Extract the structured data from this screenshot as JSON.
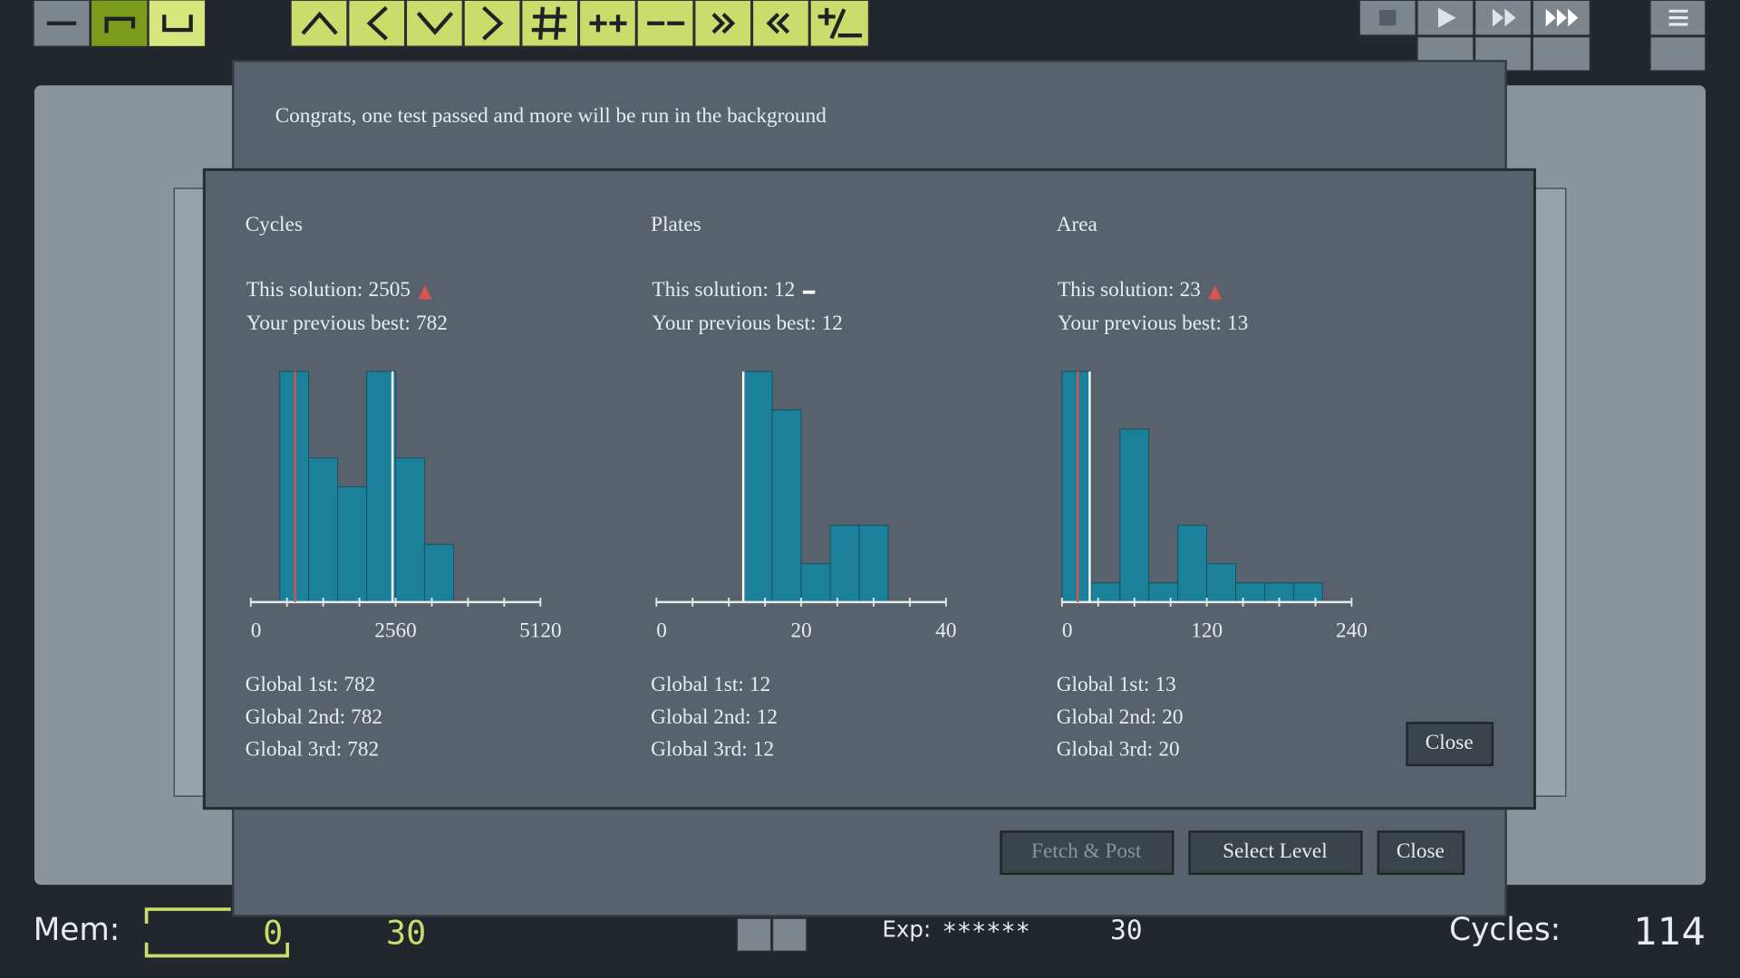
{
  "message": "Congrats, one test passed and more will be run in the background",
  "buttons": [
    "Fetch & Post",
    "Select Level",
    "Close"
  ],
  "results_close": "Close",
  "chart_data": [
    {
      "type": "histogram",
      "title": "Cycles",
      "this_solution_label": "This solution:",
      "this_solution": 2505,
      "trend": "up",
      "previous_best_label": "Your previous best:",
      "previous_best": 782,
      "bins": [
        512,
        1024,
        1536,
        2048,
        2560,
        3072,
        3584
      ],
      "counts": [
        8,
        5,
        4,
        8,
        5,
        2
      ],
      "xlim": [
        0,
        5120
      ],
      "ylim": [
        0,
        8
      ],
      "xticks": [
        0,
        2560,
        5120
      ],
      "minor_xticks": [
        0,
        640,
        1280,
        1920,
        2560,
        3200,
        3840,
        4480,
        5120
      ],
      "color": "#1b8099",
      "previous_best_color": "#d9534f",
      "this_solution_color": "#ffffff",
      "globals": [
        {
          "label": "Global 1st:",
          "value": 782
        },
        {
          "label": "Global 2nd:",
          "value": 782
        },
        {
          "label": "Global 3rd:",
          "value": 782
        }
      ]
    },
    {
      "type": "histogram",
      "title": "Plates",
      "this_solution_label": "This solution:",
      "this_solution": 12,
      "trend": "same",
      "previous_best_label": "Your previous best:",
      "previous_best": 12,
      "bins": [
        12,
        16,
        20,
        24,
        28,
        32
      ],
      "counts": [
        6,
        5,
        1,
        2,
        2
      ],
      "xlim": [
        0,
        40
      ],
      "ylim": [
        0,
        6
      ],
      "xticks": [
        0,
        20,
        40
      ],
      "minor_xticks": [
        0,
        5,
        10,
        15,
        20,
        25,
        30,
        35,
        40
      ],
      "color": "#1b8099",
      "previous_best_color": "#d9534f",
      "this_solution_color": "#ffffff",
      "globals": [
        {
          "label": "Global 1st:",
          "value": 12
        },
        {
          "label": "Global 2nd:",
          "value": 12
        },
        {
          "label": "Global 3rd:",
          "value": 12
        }
      ]
    },
    {
      "type": "histogram",
      "title": "Area",
      "this_solution_label": "This solution:",
      "this_solution": 23,
      "trend": "up",
      "previous_best_label": "Your previous best:",
      "previous_best": 13,
      "bins": [
        0,
        24,
        48,
        72,
        96,
        120,
        144,
        168,
        192,
        216
      ],
      "counts": [
        12,
        1,
        9,
        1,
        4,
        2,
        1,
        1,
        1
      ],
      "xlim": [
        0,
        240
      ],
      "ylim": [
        0,
        12
      ],
      "xticks": [
        0,
        120,
        240
      ],
      "minor_xticks": [
        0,
        30,
        60,
        90,
        120,
        150,
        180,
        210,
        240
      ],
      "color": "#1b8099",
      "previous_best_color": "#d9534f",
      "this_solution_color": "#ffffff",
      "globals": [
        {
          "label": "Global 1st:",
          "value": 13
        },
        {
          "label": "Global 2nd:",
          "value": 20
        },
        {
          "label": "Global 3rd:",
          "value": 20
        }
      ]
    }
  ],
  "status": {
    "mem_label": "Mem:",
    "mem_value": 0,
    "mem_limit": 30,
    "exp_label": "Exp:",
    "exp_value": "******",
    "exp_count": 30,
    "cycles_label": "Cycles:",
    "cycles": 114
  }
}
